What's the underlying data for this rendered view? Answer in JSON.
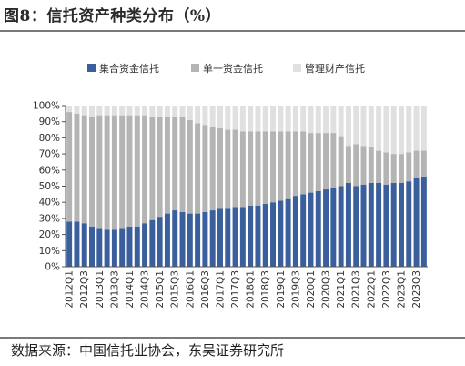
{
  "header": {
    "title": "图8：信托资产种类分布（%）"
  },
  "footer": {
    "source": "数据来源：中国信托业协会，东吴证券研究所"
  },
  "colors": {
    "collective": "#3a5f9c",
    "single": "#b4b4b4",
    "management": "#e0e0e0"
  },
  "chart_data": {
    "type": "bar",
    "stacked": true,
    "title": "",
    "xlabel": "",
    "ylabel": "",
    "ylim": [
      0,
      100
    ],
    "yticks": [
      "0%",
      "10%",
      "20%",
      "30%",
      "40%",
      "50%",
      "60%",
      "70%",
      "80%",
      "90%",
      "100%"
    ],
    "legend_position": "top",
    "grid": false,
    "categories": [
      "2012Q1",
      "2012Q2",
      "2012Q3",
      "2012Q4",
      "2013Q1",
      "2013Q2",
      "2013Q3",
      "2013Q4",
      "2014Q1",
      "2014Q2",
      "2014Q3",
      "2014Q4",
      "2015Q1",
      "2015Q2",
      "2015Q3",
      "2015Q4",
      "2016Q1",
      "2016Q2",
      "2016Q3",
      "2016Q4",
      "2017Q1",
      "2017Q2",
      "2017Q3",
      "2017Q4",
      "2018Q1",
      "2018Q2",
      "2018Q3",
      "2018Q4",
      "2019Q1",
      "2019Q2",
      "2019Q3",
      "2019Q4",
      "2020Q1",
      "2020Q2",
      "2020Q3",
      "2020Q4",
      "2021Q1",
      "2021Q2",
      "2021Q3",
      "2021Q4",
      "2022Q1",
      "2022Q2",
      "2022Q3",
      "2022Q4",
      "2023Q1",
      "2023Q2",
      "2023Q3",
      "2023Q4"
    ],
    "xtick_labels": [
      "2012Q1",
      "2012Q3",
      "2013Q1",
      "2013Q3",
      "2014Q1",
      "2014Q3",
      "2015Q1",
      "2015Q3",
      "2016Q1",
      "2016Q3",
      "2017Q1",
      "2017Q3",
      "2018Q1",
      "2018Q3",
      "2019Q1",
      "2019Q3",
      "2020Q1",
      "2020Q3",
      "2021Q1",
      "2021Q3",
      "2022Q1",
      "2022Q3",
      "2023Q1",
      "2023Q3"
    ],
    "series": [
      {
        "name": "集合资金信托",
        "values": [
          28,
          28,
          27,
          25,
          24,
          23,
          23,
          24,
          25,
          25,
          27,
          29,
          31,
          33,
          35,
          34,
          33,
          33,
          34,
          35,
          36,
          36,
          37,
          37,
          38,
          38,
          39,
          40,
          41,
          42,
          44,
          45,
          46,
          47,
          48,
          49,
          50,
          52,
          50,
          51,
          52,
          52,
          51,
          52,
          52,
          53,
          55,
          56
        ]
      },
      {
        "name": "单一资金信托",
        "values": [
          68,
          67,
          67,
          68,
          70,
          71,
          71,
          70,
          69,
          69,
          67,
          64,
          62,
          60,
          58,
          59,
          58,
          56,
          54,
          52,
          50,
          49,
          48,
          47,
          46,
          46,
          45,
          44,
          43,
          42,
          40,
          39,
          37,
          36,
          35,
          34,
          31,
          23,
          26,
          24,
          22,
          20,
          20,
          18,
          18,
          18,
          17,
          16
        ]
      },
      {
        "name": "管理财产信托",
        "values": [
          4,
          5,
          6,
          7,
          6,
          6,
          6,
          6,
          6,
          6,
          6,
          7,
          7,
          7,
          7,
          7,
          9,
          11,
          12,
          13,
          14,
          15,
          15,
          16,
          16,
          16,
          16,
          16,
          16,
          16,
          16,
          16,
          17,
          17,
          17,
          17,
          19,
          25,
          24,
          25,
          26,
          28,
          29,
          30,
          30,
          29,
          28,
          28
        ]
      }
    ]
  }
}
